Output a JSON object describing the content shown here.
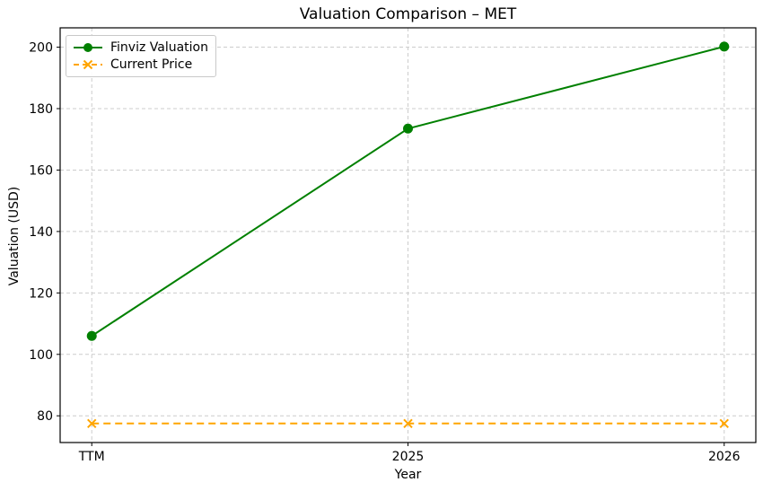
{
  "figure": {
    "background": "#ffffff",
    "grid_color": "#cccccc",
    "spine_color": "#000000"
  },
  "chart_data": {
    "type": "line",
    "title": "Valuation Comparison – MET",
    "xlabel": "Year",
    "ylabel": "Valuation (USD)",
    "categories": [
      "TTM",
      "2025",
      "2026"
    ],
    "series": [
      {
        "name": "Finviz Valuation",
        "values": [
          106,
          173.5,
          200.2
        ],
        "color": "#008000",
        "style": "solid",
        "marker": "circle"
      },
      {
        "name": "Current Price",
        "values": [
          77.5,
          77.5,
          77.5
        ],
        "color": "#FFA500",
        "style": "dashed",
        "marker": "x"
      }
    ],
    "yticks": [
      80,
      100,
      120,
      140,
      160,
      180,
      200
    ],
    "ylim": [
      71.3,
      206.3
    ],
    "grid": true,
    "legend_position": "upper left"
  }
}
